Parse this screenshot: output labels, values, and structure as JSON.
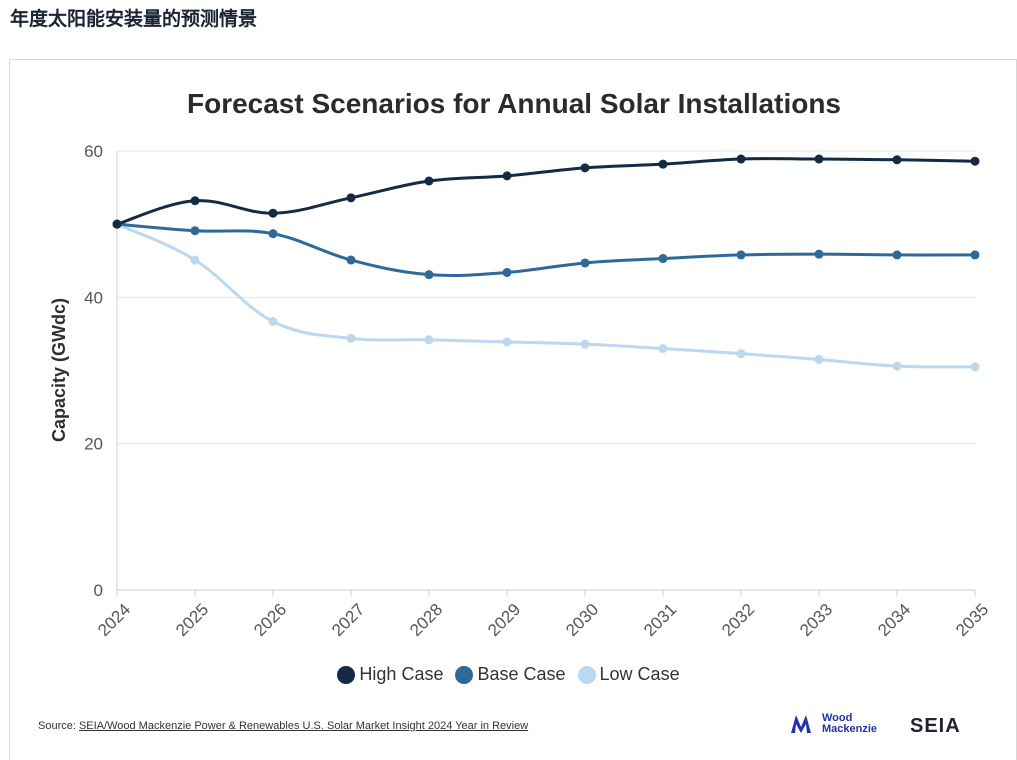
{
  "page": {
    "heading": "年度太阳能安装量的预测情景"
  },
  "colors": {
    "high": "#142b43",
    "base": "#2e6a99",
    "low": "#bcd8ee",
    "grid": "#e5e5e5",
    "axis": "#cfcfcf"
  },
  "source": {
    "prefix": "Source: ",
    "link_text": "SEIA/Wood Mackenzie Power & Renewables U.S. Solar Market Insight 2024 Year in Review"
  },
  "logos": {
    "wm_line1": "Wood",
    "wm_line2": "Mackenzie",
    "seia": "SEIA"
  },
  "chart_data": {
    "type": "line",
    "title": "Forecast Scenarios for Annual Solar Installations",
    "xlabel": "",
    "ylabel": "Capacity (GWdc)",
    "ylim": [
      0,
      60
    ],
    "yticks": [
      0,
      20,
      40,
      60
    ],
    "grid": true,
    "legend_position": "bottom",
    "categories": [
      "2024",
      "2025",
      "2026",
      "2027",
      "2028",
      "2029",
      "2030",
      "2031",
      "2032",
      "2033",
      "2034",
      "2035"
    ],
    "series": [
      {
        "name": "High Case",
        "color": "#142b43",
        "values": [
          50.0,
          53.2,
          51.5,
          53.6,
          55.9,
          56.6,
          57.7,
          58.2,
          58.9,
          58.9,
          58.8,
          58.6
        ]
      },
      {
        "name": "Base Case",
        "color": "#2e6a99",
        "values": [
          50.0,
          49.1,
          48.7,
          45.1,
          43.1,
          43.4,
          44.7,
          45.3,
          45.8,
          45.9,
          45.8,
          45.8
        ]
      },
      {
        "name": "Low Case",
        "color": "#bcd8ee",
        "values": [
          50.0,
          45.1,
          36.7,
          34.4,
          34.2,
          33.9,
          33.6,
          33.0,
          32.3,
          31.5,
          30.6,
          30.5
        ]
      }
    ]
  }
}
